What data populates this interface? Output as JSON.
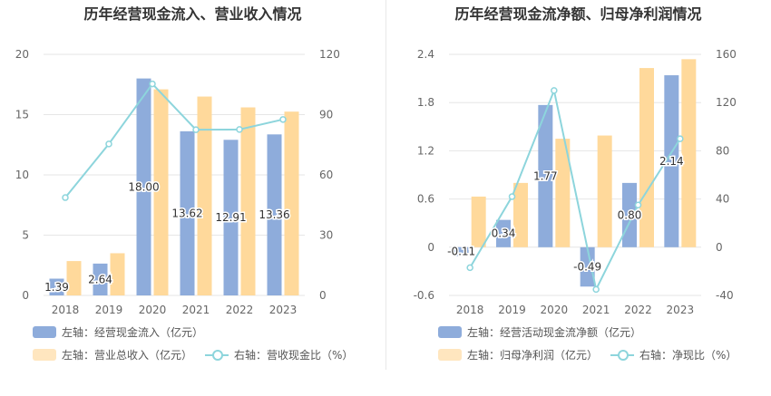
{
  "colors": {
    "bar_blue": "#8eacdb",
    "bar_yellow": "#ffd99b",
    "line": "#8dd5dc",
    "grid": "#e6e6e6",
    "axis_text": "#666666"
  },
  "chart_data": [
    {
      "type": "bar",
      "title": "历年经营现金流入、营业收入情况",
      "categories": [
        "2018",
        "2019",
        "2020",
        "2021",
        "2022",
        "2023"
      ],
      "y_left": {
        "ticks": [
          "0",
          "5",
          "10",
          "15",
          "20"
        ],
        "ylim": [
          0,
          20
        ]
      },
      "y_right": {
        "ticks": [
          "0",
          "30",
          "60",
          "90",
          "120"
        ],
        "ylim": [
          0,
          120
        ]
      },
      "series": [
        {
          "name": "左轴：经营现金流入（亿元）",
          "type": "bar",
          "axis": "left",
          "values": [
            1.39,
            2.64,
            18.0,
            13.62,
            12.91,
            13.36
          ],
          "labels": [
            "1.39",
            "2.64",
            "18.00",
            "13.62",
            "12.91",
            "13.36"
          ]
        },
        {
          "name": "左轴：营业总收入（亿元）",
          "type": "bar",
          "axis": "left",
          "values": [
            2.85,
            3.5,
            17.1,
            16.5,
            15.6,
            15.25
          ]
        },
        {
          "name": "右轴：营收现金比（%）",
          "type": "line",
          "axis": "right",
          "values": [
            48.7,
            75.4,
            105.3,
            82.5,
            82.6,
            87.6
          ]
        }
      ],
      "legend": [
        "左轴：经营现金流入（亿元）",
        "左轴：营业总收入（亿元）",
        "右轴：营收现金比（%）"
      ]
    },
    {
      "type": "bar",
      "title": "历年经营现金流净额、归母净利润情况",
      "categories": [
        "2018",
        "2019",
        "2020",
        "2021",
        "2022",
        "2023"
      ],
      "y_left": {
        "ticks": [
          "-0.6",
          "0",
          "0.6",
          "1.2",
          "1.8",
          "2.4"
        ],
        "ylim": [
          -0.6,
          2.4
        ]
      },
      "y_right": {
        "ticks": [
          "-40",
          "0",
          "40",
          "80",
          "120",
          "160"
        ],
        "ylim": [
          -40,
          160
        ]
      },
      "series": [
        {
          "name": "左轴：经营活动现金流净额（亿元）",
          "type": "bar",
          "axis": "left",
          "values": [
            -0.11,
            0.34,
            1.77,
            -0.49,
            0.8,
            2.14
          ],
          "labels": [
            "-0.11",
            "0.34",
            "1.77",
            "-0.49",
            "0.80",
            "2.14"
          ]
        },
        {
          "name": "左轴：归母净利润（亿元）",
          "type": "bar",
          "axis": "left",
          "values": [
            0.63,
            0.8,
            1.35,
            1.39,
            2.23,
            2.34
          ]
        },
        {
          "name": "右轴：净现比（%）",
          "type": "line",
          "axis": "right",
          "values": [
            -17,
            42,
            130,
            -35,
            35,
            90
          ]
        }
      ],
      "legend": [
        "左轴：经营活动现金流净额（亿元）",
        "左轴：归母净利润（亿元）",
        "右轴：净现比（%）"
      ]
    }
  ]
}
